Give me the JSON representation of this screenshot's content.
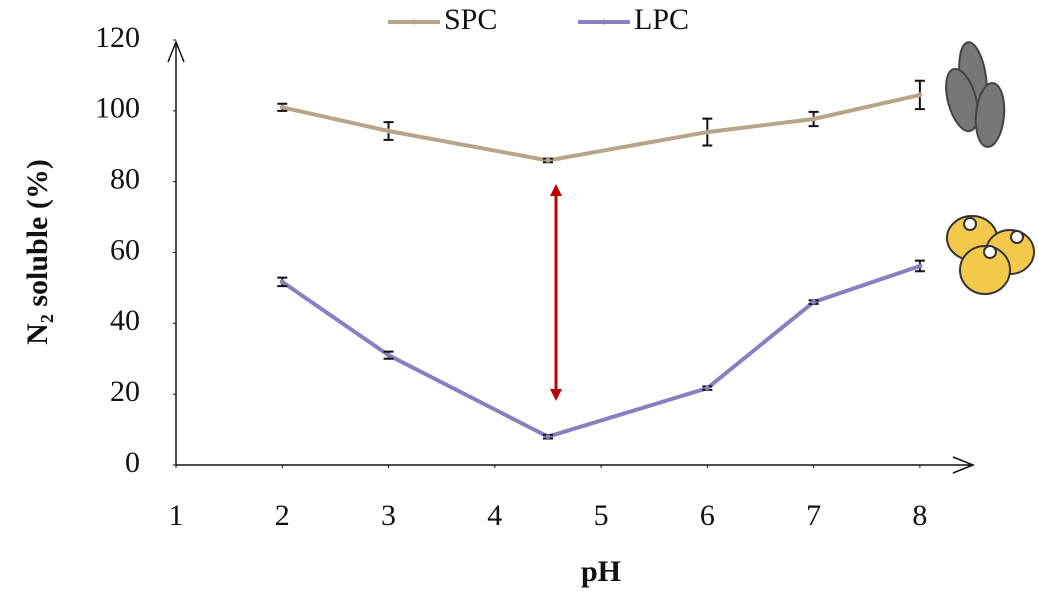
{
  "chart_data": {
    "type": "line",
    "x_label": "pH",
    "y_label": "N₂ soluble (%)",
    "x": [
      2,
      3,
      4.5,
      6,
      7,
      8
    ],
    "series": [
      {
        "name": "SPC",
        "color": "#b5a58a",
        "values": [
          101,
          94.3,
          86,
          94,
          97.7,
          104.5
        ],
        "errors": [
          1,
          2.5,
          0.5,
          3.8,
          2,
          4
        ]
      },
      {
        "name": "LPC",
        "color": "#8a7fc0",
        "values": [
          51.7,
          31,
          8,
          21.7,
          46,
          56.2
        ],
        "errors": [
          1.2,
          1,
          0.5,
          0.5,
          0.5,
          1.5
        ]
      }
    ],
    "xlim": [
      1,
      8.5
    ],
    "xticks": [
      1,
      2,
      3,
      4,
      5,
      6,
      7,
      8
    ],
    "ylim": [
      0,
      120
    ],
    "yticks": [
      0,
      20,
      40,
      60,
      80,
      100,
      120
    ],
    "legend": "top"
  }
}
